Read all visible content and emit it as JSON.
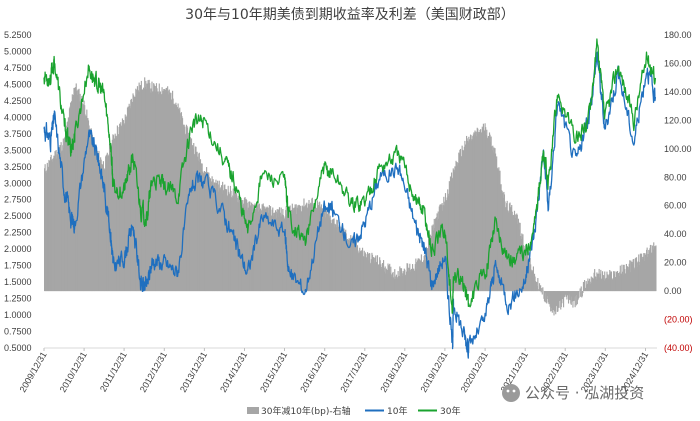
{
  "title": "30年与10年期美债到期收益率及利差（美国财政部）",
  "watermark": "公众号 · 泓湖投资",
  "chart_data": {
    "type": "line",
    "title": "30年与10年期美债到期收益率及利差（美国财政部）",
    "x_ticks": [
      "2009/12/31",
      "2010/12/31",
      "2011/12/31",
      "2012/12/31",
      "2013/12/31",
      "2014/12/31",
      "2015/12/31",
      "2016/12/31",
      "2017/12/31",
      "2018/12/31",
      "2019/12/31",
      "2020/12/31",
      "2021/12/31",
      "2022/12/31",
      "2023/12/31",
      "2024/12/31"
    ],
    "y_left_ticks": [
      "5.2500",
      "5.0000",
      "4.7500",
      "4.5000",
      "4.2500",
      "4.0000",
      "3.7500",
      "3.5000",
      "3.2500",
      "3.0000",
      "2.7500",
      "2.5000",
      "2.2500",
      "2.0000",
      "1.7500",
      "1.5000",
      "1.2500",
      "1.0000",
      "0.7500",
      "0.5000"
    ],
    "y_right_ticks": [
      "180.00",
      "160.00",
      "140.00",
      "120.00",
      "100.00",
      "80.00",
      "60.00",
      "40.00",
      "20.00",
      "0.00",
      "(20.00)",
      "(40.00)"
    ],
    "ylim_left": [
      0.5,
      5.25
    ],
    "ylim_right": [
      -40,
      180
    ],
    "legend_position": "bottom",
    "colors": {
      "spread": "#a6a6a6",
      "y10": "#1f6fbf",
      "y30": "#1aa32f",
      "negative_tick": "#c00000",
      "text": "#404040"
    },
    "series": [
      {
        "name": "30年减10年(bp)-右轴",
        "axis": "right",
        "type": "area",
        "x": [
          "2009-12-31",
          "2010-03-31",
          "2010-06-30",
          "2010-09-30",
          "2010-12-31",
          "2011-03-31",
          "2011-06-30",
          "2011-09-30",
          "2011-12-31",
          "2012-03-31",
          "2012-06-30",
          "2012-09-30",
          "2012-12-31",
          "2013-03-31",
          "2013-06-30",
          "2013-09-30",
          "2013-12-31",
          "2014-03-31",
          "2014-06-30",
          "2014-09-30",
          "2014-12-31",
          "2015-03-31",
          "2015-06-30",
          "2015-09-30",
          "2015-12-31",
          "2016-03-31",
          "2016-06-30",
          "2016-09-30",
          "2016-12-31",
          "2017-03-31",
          "2017-06-30",
          "2017-09-30",
          "2017-12-31",
          "2018-03-31",
          "2018-06-30",
          "2018-09-30",
          "2018-12-31",
          "2019-03-31",
          "2019-06-30",
          "2019-09-30",
          "2019-12-31",
          "2020-03-31",
          "2020-06-30",
          "2020-09-30",
          "2020-12-31",
          "2021-03-31",
          "2021-06-30",
          "2021-09-30",
          "2021-12-31",
          "2022-03-31",
          "2022-06-30",
          "2022-09-30",
          "2022-12-31",
          "2023-03-31",
          "2023-06-30",
          "2023-09-30",
          "2023-12-31",
          "2024-03-31",
          "2024-06-30",
          "2024-09-30",
          "2024-12-31",
          "2025-03-31"
        ],
        "values": [
          85,
          95,
          105,
          145,
          130,
          100,
          88,
          110,
          120,
          140,
          146,
          142,
          142,
          135,
          115,
          100,
          85,
          75,
          72,
          68,
          62,
          58,
          57,
          55,
          55,
          58,
          61,
          62,
          55,
          48,
          40,
          33,
          25,
          22,
          17,
          12,
          15,
          18,
          25,
          50,
          65,
          88,
          104,
          110,
          115,
          97,
          60,
          55,
          30,
          8,
          -5,
          -15,
          -5,
          -8,
          5,
          12,
          10,
          12,
          16,
          20,
          25,
          35
        ]
      },
      {
        "name": "10年",
        "axis": "left",
        "type": "line",
        "x": [
          "2009-12-31",
          "2010-02-28",
          "2010-04-05",
          "2010-06-30",
          "2010-08-31",
          "2010-10-08",
          "2011-02-08",
          "2011-04-30",
          "2011-06-30",
          "2011-08-31",
          "2011-09-22",
          "2011-12-31",
          "2012-03-20",
          "2012-06-01",
          "2012-07-25",
          "2012-09-15",
          "2012-12-31",
          "2013-05-01",
          "2013-09-05",
          "2013-12-31",
          "2014-06-30",
          "2014-10-15",
          "2015-01-30",
          "2015-06-10",
          "2015-12-31",
          "2016-02-11",
          "2016-07-08",
          "2016-12-15",
          "2017-03-15",
          "2017-09-07",
          "2017-12-31",
          "2018-05-17",
          "2018-11-08",
          "2019-03-31",
          "2019-06-30",
          "2019-09-03",
          "2019-12-31",
          "2020-03-09",
          "2020-03-19",
          "2020-06-30",
          "2020-08-04",
          "2020-12-31",
          "2021-03-31",
          "2021-08-04",
          "2021-12-31",
          "2022-03-31",
          "2022-06-14",
          "2022-08-01",
          "2022-10-24",
          "2023-04-06",
          "2023-07-31",
          "2023-10-19",
          "2023-12-27",
          "2024-04-25",
          "2024-09-16",
          "2025-01-14",
          "2025-03-31"
        ],
        "values": [
          3.84,
          3.65,
          4.0,
          2.95,
          2.48,
          2.38,
          3.74,
          3.45,
          2.95,
          2.24,
          1.72,
          1.88,
          2.38,
          1.48,
          1.43,
          1.85,
          1.78,
          1.65,
          2.98,
          3.02,
          2.53,
          2.05,
          1.64,
          2.48,
          2.27,
          1.63,
          1.37,
          2.6,
          2.58,
          2.04,
          2.41,
          3.11,
          3.24,
          2.41,
          2.0,
          1.47,
          1.92,
          0.54,
          1.18,
          0.66,
          0.52,
          0.93,
          1.74,
          1.17,
          1.52,
          2.32,
          3.49,
          2.6,
          4.25,
          3.3,
          3.96,
          4.98,
          3.79,
          4.7,
          3.62,
          4.79,
          4.23
        ]
      },
      {
        "name": "30年",
        "axis": "left",
        "type": "line",
        "x": [
          "2009-12-31",
          "2010-02-28",
          "2010-04-05",
          "2010-06-30",
          "2010-08-31",
          "2010-10-08",
          "2011-02-08",
          "2011-04-30",
          "2011-06-30",
          "2011-08-31",
          "2011-09-22",
          "2011-12-31",
          "2012-03-20",
          "2012-06-01",
          "2012-07-25",
          "2012-09-15",
          "2012-12-31",
          "2013-05-01",
          "2013-09-05",
          "2013-12-31",
          "2014-06-30",
          "2014-10-15",
          "2015-01-30",
          "2015-06-10",
          "2015-12-31",
          "2016-02-11",
          "2016-07-08",
          "2016-12-15",
          "2017-03-15",
          "2017-09-07",
          "2017-12-31",
          "2018-05-17",
          "2018-11-08",
          "2019-03-31",
          "2019-06-30",
          "2019-09-03",
          "2019-12-31",
          "2020-03-09",
          "2020-03-19",
          "2020-06-30",
          "2020-08-04",
          "2020-12-31",
          "2021-03-31",
          "2021-08-04",
          "2021-12-31",
          "2022-03-31",
          "2022-06-14",
          "2022-08-01",
          "2022-10-24",
          "2023-04-06",
          "2023-07-31",
          "2023-10-19",
          "2023-12-27",
          "2024-04-25",
          "2024-09-16",
          "2025-01-14",
          "2025-03-31"
        ],
        "values": [
          4.64,
          4.6,
          4.85,
          3.9,
          3.52,
          3.72,
          4.75,
          4.5,
          4.35,
          3.6,
          2.9,
          2.9,
          3.4,
          2.6,
          2.48,
          3.07,
          2.95,
          2.8,
          3.88,
          3.96,
          3.36,
          2.98,
          2.25,
          3.13,
          3.01,
          2.5,
          2.1,
          3.17,
          3.18,
          2.68,
          2.74,
          3.25,
          3.44,
          2.81,
          2.52,
          1.97,
          2.33,
          0.99,
          1.64,
          1.41,
          1.19,
          1.64,
          2.42,
          1.85,
          1.9,
          2.44,
          3.43,
          2.96,
          4.4,
          3.62,
          4.0,
          5.1,
          3.95,
          4.81,
          3.95,
          4.95,
          4.59
        ]
      }
    ]
  },
  "legend": [
    "30年减10年(bp)-右轴",
    "10年",
    "30年"
  ]
}
